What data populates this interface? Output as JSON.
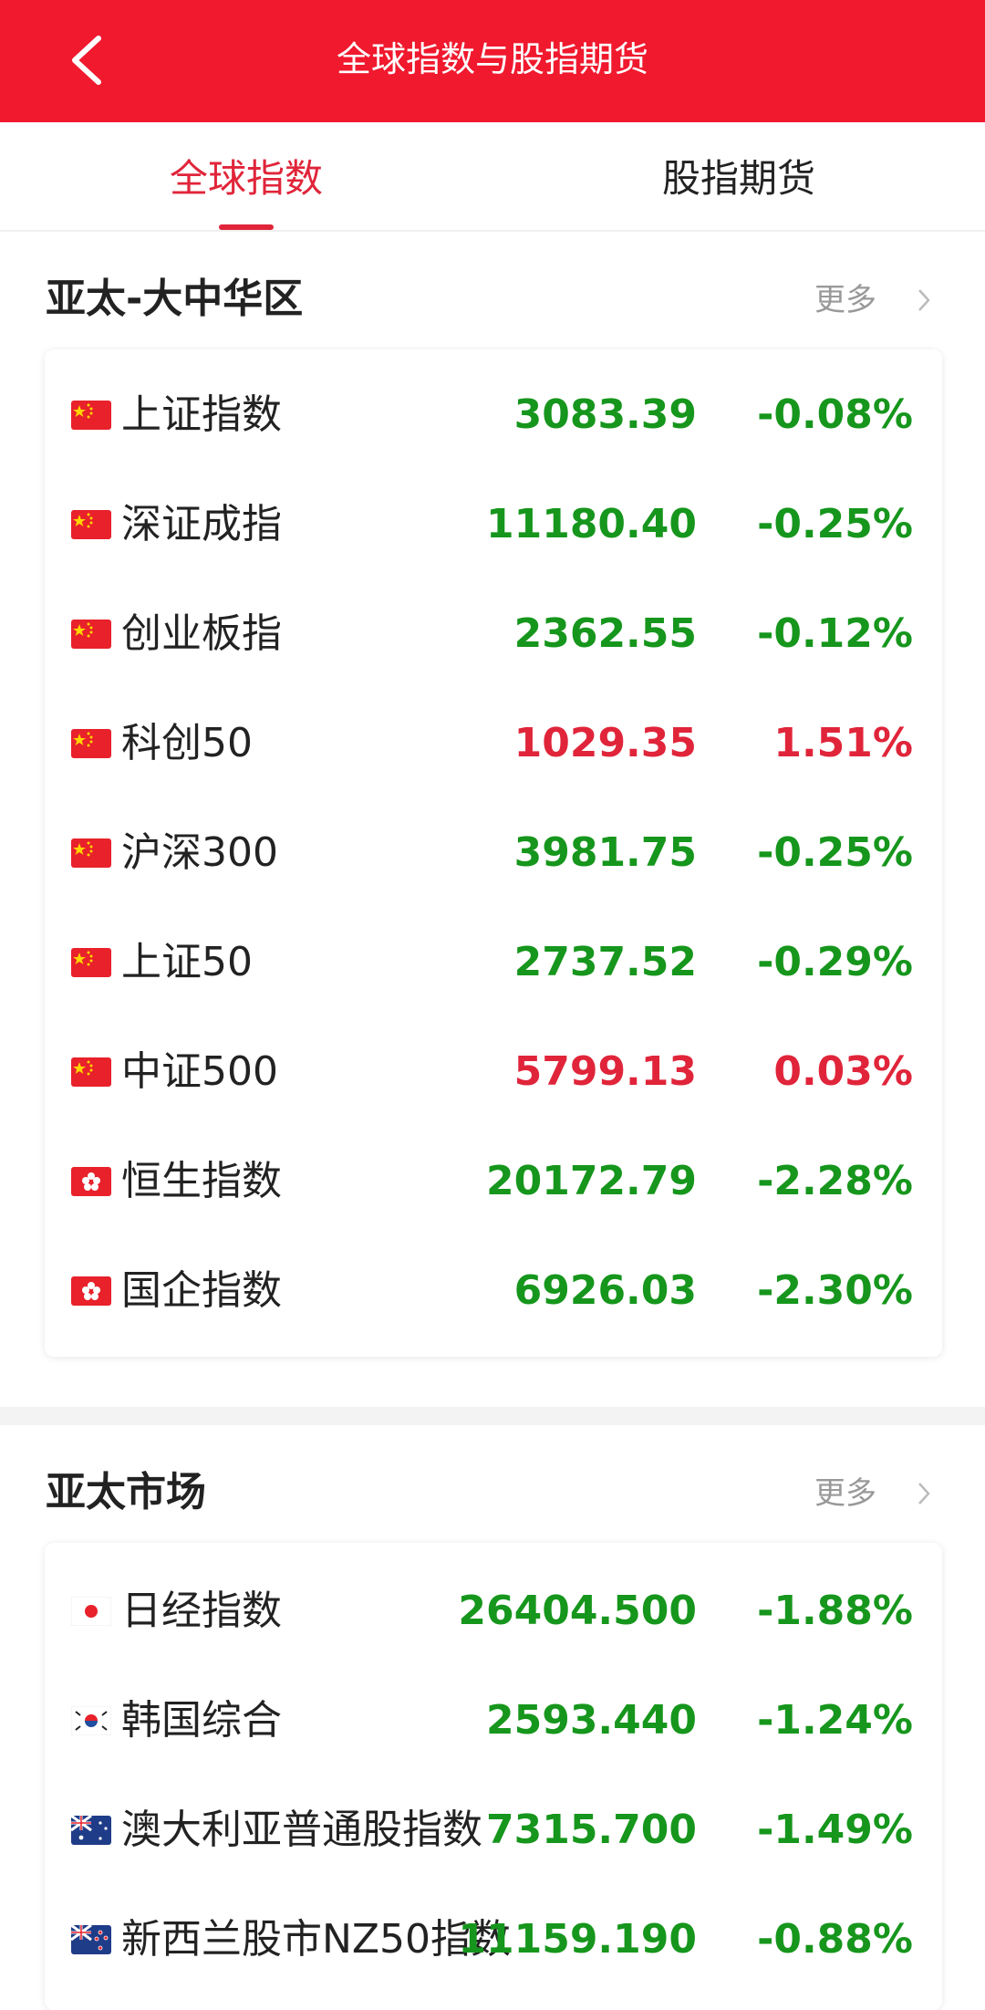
{
  "header": {
    "title": "全球指数与股指期货"
  },
  "tabs": [
    "全球指数",
    "股指期货"
  ],
  "sections": [
    {
      "title": "亚太-大中华区",
      "more": "更多",
      "rows": [
        {
          "name": "上证指数",
          "value": "3083.39",
          "change": "-0.08%",
          "color": "#16961c"
        },
        {
          "name": "深证成指",
          "value": "11180.40",
          "change": "-0.25%",
          "color": "#16961c"
        },
        {
          "name": "创业板指",
          "value": "2362.55",
          "change": "-0.12%",
          "color": "#16961c"
        },
        {
          "name": "科创50",
          "value": "1029.35",
          "change": "1.51%",
          "color": "#e0253a"
        },
        {
          "name": "沪深300",
          "value": "3981.75",
          "change": "-0.25%",
          "color": "#16961c"
        },
        {
          "name": "上证50",
          "value": "2737.52",
          "change": "-0.29%",
          "color": "#16961c"
        },
        {
          "name": "中证500",
          "value": "5799.13",
          "change": "0.03%",
          "color": "#e0253a"
        },
        {
          "name": "恒生指数",
          "value": "20172.79",
          "change": "-2.28%",
          "color": "#16961c"
        },
        {
          "name": "国企指数",
          "value": "6926.03",
          "change": "-2.30%",
          "color": "#16961c"
        }
      ]
    },
    {
      "title": "亚太市场",
      "more": "更多",
      "rows": [
        {
          "name": "日经指数",
          "value": "26404.500",
          "change": "-1.88%",
          "color": "#16961c"
        },
        {
          "name": "韩国综合",
          "value": "2593.440",
          "change": "-1.24%",
          "color": "#16961c"
        },
        {
          "name": "澳大利亚普通股指数",
          "value": "7315.700",
          "change": "-1.49%",
          "color": "#16961c"
        },
        {
          "name": "新西兰股市NZ50指数",
          "value": "11159.190",
          "change": "-0.88%",
          "color": "#16961c"
        }
      ]
    }
  ]
}
